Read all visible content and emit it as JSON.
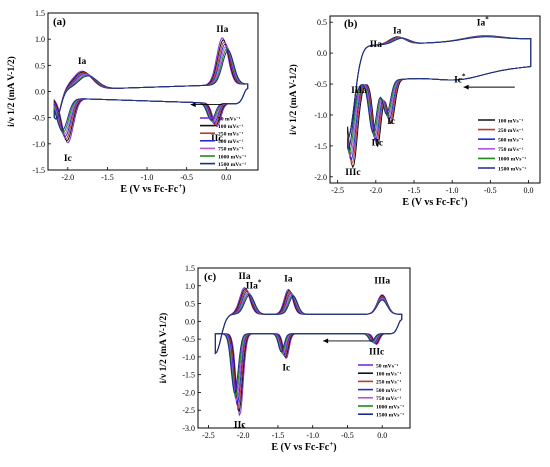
{
  "chart_data": [
    {
      "type": "line",
      "panel_label": "(a)",
      "xlabel": "E (V vs Fc-Fc",
      "xlabel_sup": "+",
      "xlabel_close": ")",
      "ylabel": "i/ν 1/2 (mA V-1/2)",
      "xlim": [
        -2.25,
        0.4
      ],
      "ylim": [
        -1.5,
        1.5
      ],
      "x_ticks": [
        -2.0,
        -1.5,
        -1.0,
        -0.5,
        0.0
      ],
      "x_tick_labels": [
        "-2.0",
        "-1.5",
        "-1.0",
        "-0.5",
        "0.0"
      ],
      "y_ticks": [
        -1.5,
        -1.0,
        -0.5,
        0.0,
        0.5,
        1.0,
        1.5
      ],
      "y_tick_labels": [
        "-1.5",
        "-1.0",
        "-0.5",
        "0.0",
        "0.5",
        "1.0",
        "1.5"
      ],
      "peaks": [
        {
          "label": "Ia",
          "sup": "",
          "x": -1.82,
          "y": 0.41
        },
        {
          "label": "IIa",
          "sup": "",
          "x": -0.05,
          "y": 1.02
        },
        {
          "label": "Ic",
          "sup": "",
          "x": -2.0,
          "y": -1.1
        },
        {
          "label": "IIc",
          "sup": "",
          "x": -0.12,
          "y": -0.72
        }
      ],
      "legend": [
        "50 mVs⁻¹",
        "100 mVs⁻¹",
        "250 mVs⁻¹",
        "500 mVs⁻¹",
        "750 mVs⁻¹",
        "1000 mVs⁻¹",
        "1500 mVs⁻¹"
      ],
      "series_colors": [
        "#7b2fd1",
        "#111111",
        "#c0392b",
        "#2b2bd6",
        "#b455e0",
        "#1e8a1e",
        "#1c2a8a"
      ],
      "legend_position": "bottom-right",
      "scan_arrow": "leftward",
      "grid": false
    },
    {
      "type": "line",
      "panel_label": "(b)",
      "xlabel": "E (V vs Fc-Fc",
      "xlabel_sup": "+",
      "xlabel_close": ")",
      "ylabel": "i/ν 1/2 (mA V-1/2)",
      "xlim": [
        -2.6,
        0.15
      ],
      "ylim": [
        -2.1,
        0.6
      ],
      "x_ticks": [
        -2.5,
        -2.0,
        -1.5,
        -1.0,
        -0.5,
        0.0
      ],
      "x_tick_labels": [
        "-2.5",
        "-2.0",
        "-1.5",
        "-1.0",
        "-0.5",
        "0.0"
      ],
      "y_ticks": [
        -2.0,
        -1.5,
        -1.0,
        -0.5,
        0.0,
        0.5
      ],
      "y_tick_labels": [
        "-2.0",
        "-1.5",
        "-1.0",
        "-0.5",
        "0.0",
        "0.5"
      ],
      "peaks": [
        {
          "label": "Ia",
          "sup": "",
          "x": -1.72,
          "y": 0.22
        },
        {
          "label": "Ia",
          "sup": "*",
          "x": -0.6,
          "y": 0.35
        },
        {
          "label": "IIa",
          "sup": "",
          "x": -2.0,
          "y": 0.0
        },
        {
          "label": "IIIa",
          "sup": "",
          "x": -2.22,
          "y": -0.45
        },
        {
          "label": "Ic",
          "sup": "",
          "x": -1.8,
          "y": -0.95
        },
        {
          "label": "Ic",
          "sup": "*",
          "x": -0.9,
          "y": -0.28
        },
        {
          "label": "IIc",
          "sup": "",
          "x": -1.98,
          "y": -1.3
        },
        {
          "label": "IIIc",
          "sup": "",
          "x": -2.3,
          "y": -1.78
        }
      ],
      "legend": [
        "100 mVs⁻¹",
        "250 mVs⁻¹",
        "500 mVs⁻¹",
        "750 mVs⁻¹",
        "1000 mVs⁻¹",
        "1500 mVs⁻¹"
      ],
      "series_colors": [
        "#111111",
        "#c0392b",
        "#2b2bd6",
        "#b455e0",
        "#1e8a1e",
        "#1c2a8a"
      ],
      "legend_position": "bottom-right",
      "scan_arrow": "leftward",
      "grid": false
    },
    {
      "type": "line",
      "panel_label": "(c)",
      "xlabel": "E (V vs Fc-Fc",
      "xlabel_sup": "+",
      "xlabel_close": ")",
      "ylabel": "i/ν 1/2 (mA V-1/2)",
      "xlim": [
        -2.65,
        0.4
      ],
      "ylim": [
        -3.0,
        1.5
      ],
      "x_ticks": [
        -2.5,
        -2.0,
        -1.5,
        -1.0,
        -0.5,
        0.0
      ],
      "x_tick_labels": [
        "-2.5",
        "-2.0",
        "-1.5",
        "-1.0",
        "-0.5",
        "0.0"
      ],
      "y_ticks": [
        -3.0,
        -2.5,
        -2.0,
        -1.5,
        -1.0,
        -0.5,
        0.0,
        0.5,
        1.0,
        1.5
      ],
      "y_tick_labels": [
        "-3.0",
        "-2.5",
        "-2.0",
        "-1.5",
        "-1.0",
        "-0.5",
        "0.0",
        "0.5",
        "1.0",
        "1.5"
      ],
      "peaks": [
        {
          "label": "IIa",
          "sup": "",
          "x": -1.98,
          "y": 1.02
        },
        {
          "label": "IIa",
          "sup": "*",
          "x": -1.85,
          "y": 0.75
        },
        {
          "label": "Ia",
          "sup": "",
          "x": -1.35,
          "y": 0.95
        },
        {
          "label": "IIIa",
          "sup": "",
          "x": 0.0,
          "y": 0.9
        },
        {
          "label": "Ic",
          "sup": "",
          "x": -1.38,
          "y": -1.05
        },
        {
          "label": "IIc",
          "sup": "",
          "x": -2.05,
          "y": -2.65
        },
        {
          "label": "IIIc",
          "sup": "",
          "x": -0.08,
          "y": -0.6
        }
      ],
      "legend": [
        "50 mVs⁻¹",
        "100 mVs⁻¹",
        "250 mVs⁻¹",
        "500 mVs⁻¹",
        "750 mVs⁻¹",
        "1000 mVs⁻¹",
        "1500 mVs⁻¹"
      ],
      "series_colors": [
        "#7b2fd1",
        "#111111",
        "#c0392b",
        "#2b2bd6",
        "#b455e0",
        "#1e8a1e",
        "#1c2a8a"
      ],
      "legend_position": "right",
      "scan_arrow": "leftward",
      "grid": false
    }
  ]
}
